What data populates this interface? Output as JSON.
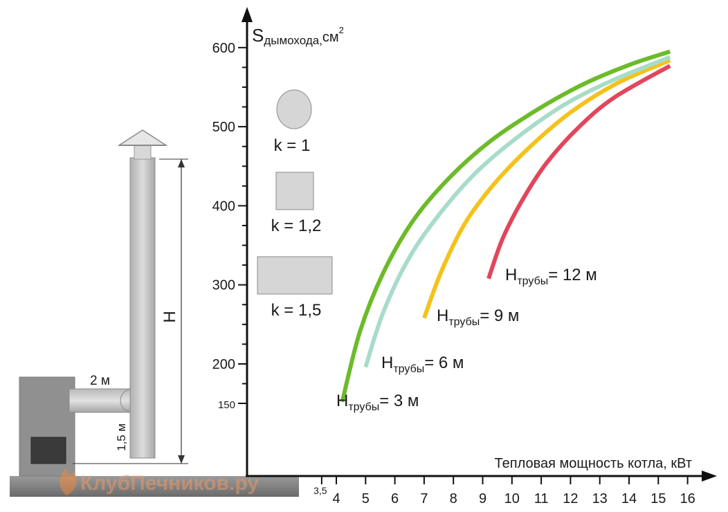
{
  "chart_data": {
    "type": "line",
    "y_axis": {
      "title_main": "S",
      "title_sub": "дымохода,",
      "unit": "см",
      "unit_exp": "2",
      "ticks": [
        150,
        200,
        300,
        400,
        500,
        600
      ],
      "ylim": [
        80,
        630
      ]
    },
    "x_axis": {
      "title": "Тепловая мощность котла, кВт",
      "ticks": [
        "3,5",
        "4",
        "5",
        "6",
        "7",
        "8",
        "9",
        "10",
        "11",
        "12",
        "13",
        "14",
        "15",
        "16"
      ],
      "xlim": [
        3.0,
        16.5
      ]
    },
    "series": [
      {
        "name_main": "H",
        "name_sub": "трубы",
        "name_value": "= 3 м",
        "color": "#6cbb2a",
        "x": [
          4.2,
          4.8,
          5.6,
          6.6,
          7.8,
          9.2,
          10.8,
          12.4,
          14.0,
          15.4
        ],
        "y": [
          152,
          240,
          315,
          380,
          433,
          480,
          520,
          553,
          578,
          595
        ]
      },
      {
        "name_main": "H",
        "name_sub": "трубы",
        "name_value": "= 6 м",
        "color": "#a8dcc8",
        "x": [
          5.0,
          5.6,
          6.5,
          7.6,
          8.8,
          10.2,
          11.8,
          13.4,
          15.4
        ],
        "y": [
          196,
          265,
          335,
          393,
          443,
          487,
          528,
          558,
          588
        ]
      },
      {
        "name_main": "H",
        "name_sub": "трубы",
        "name_value": "= 9 м",
        "color": "#f4c21a",
        "x": [
          7.0,
          7.6,
          8.4,
          9.4,
          10.6,
          12.0,
          13.6,
          15.4
        ],
        "y": [
          258,
          318,
          378,
          428,
          474,
          518,
          555,
          584
        ]
      },
      {
        "name_main": "H",
        "name_sub": "трубы",
        "name_value": "= 12 м",
        "color": "#e2465c",
        "x": [
          9.2,
          9.7,
          10.4,
          11.2,
          12.3,
          13.5,
          15.4
        ],
        "y": [
          308,
          360,
          410,
          455,
          500,
          537,
          577
        ]
      }
    ],
    "legend": {
      "shapes": [
        {
          "shape": "circle",
          "label": "k = 1"
        },
        {
          "shape": "square",
          "label": "k = 1,2"
        },
        {
          "shape": "rectangle",
          "label": "k = 1,5"
        }
      ]
    }
  },
  "diagram": {
    "connector_label": "2 м",
    "height_label": "1,5 м",
    "chimney_label": "H"
  },
  "watermark": "КлубПечников.ру"
}
